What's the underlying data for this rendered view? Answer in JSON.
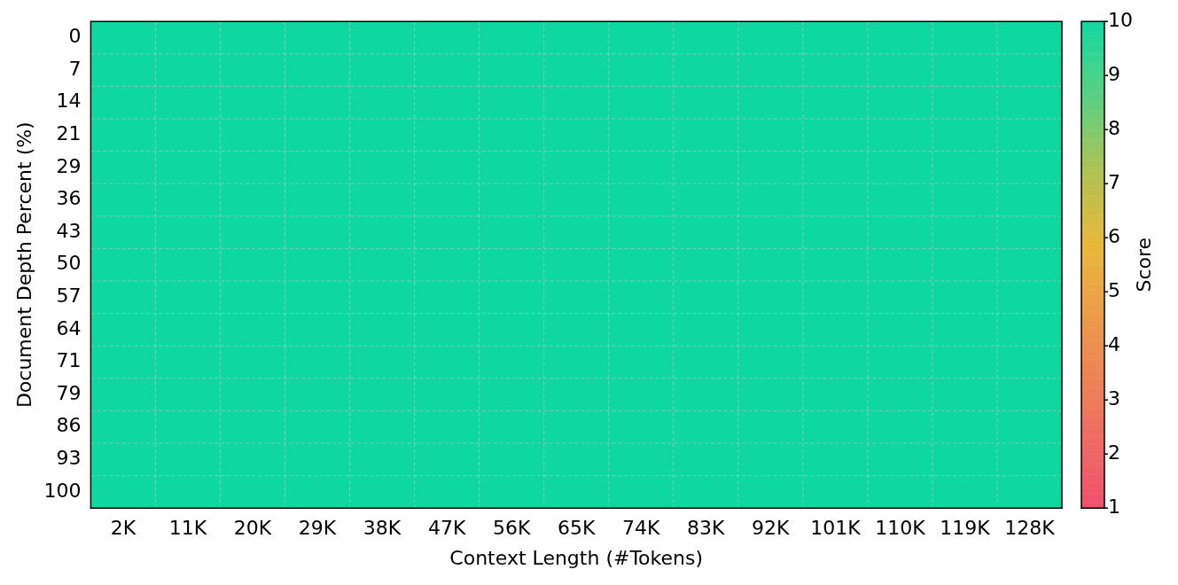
{
  "chart_data": {
    "type": "heatmap",
    "xlabel": "Context Length (#Tokens)",
    "ylabel": "Document Depth Percent (%)",
    "clabel": "Score",
    "categories": [
      "2K",
      "11K",
      "20K",
      "29K",
      "38K",
      "47K",
      "56K",
      "65K",
      "74K",
      "83K",
      "92K",
      "101K",
      "110K",
      "119K",
      "128K"
    ],
    "y_categories": [
      "0",
      "7",
      "14",
      "21",
      "29",
      "36",
      "43",
      "50",
      "57",
      "64",
      "71",
      "79",
      "86",
      "93",
      "100"
    ],
    "cells": [
      [
        10,
        10,
        10,
        10,
        10,
        10,
        10,
        10,
        10,
        10,
        10,
        10,
        10,
        10,
        10
      ],
      [
        10,
        10,
        10,
        10,
        10,
        10,
        10,
        10,
        10,
        10,
        10,
        10,
        10,
        10,
        10
      ],
      [
        10,
        10,
        10,
        10,
        10,
        10,
        10,
        10,
        10,
        10,
        10,
        10,
        10,
        10,
        10
      ],
      [
        10,
        10,
        10,
        10,
        10,
        10,
        10,
        10,
        10,
        10,
        10,
        10,
        10,
        10,
        10
      ],
      [
        10,
        10,
        10,
        10,
        10,
        10,
        10,
        10,
        10,
        10,
        10,
        10,
        10,
        10,
        10
      ],
      [
        10,
        10,
        10,
        10,
        10,
        10,
        10,
        10,
        10,
        10,
        10,
        10,
        10,
        10,
        10
      ],
      [
        10,
        10,
        10,
        10,
        10,
        10,
        10,
        10,
        10,
        10,
        10,
        10,
        10,
        10,
        10
      ],
      [
        10,
        10,
        10,
        10,
        10,
        10,
        10,
        10,
        10,
        10,
        10,
        10,
        10,
        10,
        10
      ],
      [
        10,
        10,
        10,
        10,
        10,
        10,
        10,
        10,
        10,
        10,
        10,
        10,
        10,
        10,
        10
      ],
      [
        10,
        10,
        10,
        10,
        10,
        10,
        10,
        10,
        10,
        10,
        10,
        10,
        10,
        10,
        10
      ],
      [
        10,
        10,
        10,
        10,
        10,
        10,
        10,
        10,
        10,
        10,
        10,
        10,
        10,
        10,
        10
      ],
      [
        10,
        10,
        10,
        10,
        10,
        10,
        10,
        10,
        10,
        10,
        10,
        10,
        10,
        10,
        10
      ],
      [
        10,
        10,
        10,
        10,
        10,
        10,
        10,
        10,
        10,
        10,
        10,
        10,
        10,
        10,
        10
      ],
      [
        10,
        10,
        10,
        10,
        10,
        10,
        10,
        10,
        10,
        10,
        10,
        10,
        10,
        10,
        10
      ],
      [
        10,
        10,
        10,
        10,
        10,
        10,
        10,
        10,
        10,
        10,
        10,
        10,
        10,
        10,
        10
      ]
    ],
    "clim": [
      1,
      10
    ],
    "cticks": [
      1,
      2,
      3,
      4,
      5,
      6,
      7,
      8,
      9,
      10
    ],
    "grid": true
  }
}
